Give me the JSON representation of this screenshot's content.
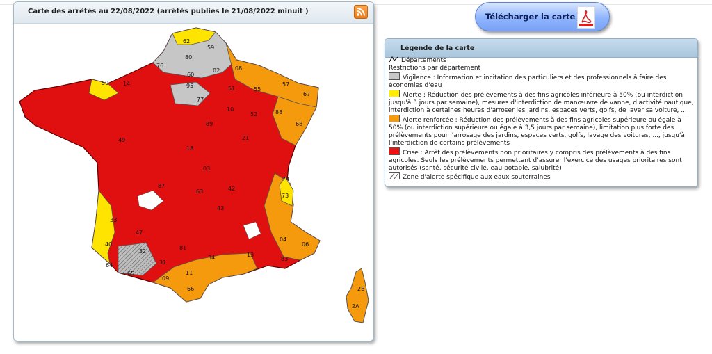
{
  "map": {
    "title": "Carte des arrêtés au 22/08/2022 (arrêtés publiés le 21/08/2022 minuit )",
    "dept_labels": [
      {
        "text": "62"
      },
      {
        "text": "59"
      },
      {
        "text": "80"
      },
      {
        "text": "76"
      },
      {
        "text": "02"
      },
      {
        "text": "08"
      },
      {
        "text": "60"
      },
      {
        "text": "14"
      },
      {
        "text": "50"
      },
      {
        "text": "95"
      },
      {
        "text": "51"
      },
      {
        "text": "57"
      },
      {
        "text": "67"
      },
      {
        "text": "55"
      },
      {
        "text": "77"
      },
      {
        "text": "10"
      },
      {
        "text": "52"
      },
      {
        "text": "88"
      },
      {
        "text": "68"
      },
      {
        "text": "89"
      },
      {
        "text": "21"
      },
      {
        "text": "49"
      },
      {
        "text": "18"
      },
      {
        "text": "03"
      },
      {
        "text": "74"
      },
      {
        "text": "73"
      },
      {
        "text": "42"
      },
      {
        "text": "43"
      },
      {
        "text": "33"
      },
      {
        "text": "47"
      },
      {
        "text": "40"
      },
      {
        "text": "32"
      },
      {
        "text": "31"
      },
      {
        "text": "34"
      },
      {
        "text": "13"
      },
      {
        "text": "83"
      },
      {
        "text": "04"
      },
      {
        "text": "06"
      },
      {
        "text": "64"
      },
      {
        "text": "65"
      },
      {
        "text": "09"
      },
      {
        "text": "66"
      },
      {
        "text": "11"
      },
      {
        "text": "2B"
      },
      {
        "text": "2A"
      },
      {
        "text": "63"
      },
      {
        "text": "81"
      },
      {
        "text": "87"
      }
    ]
  },
  "download": {
    "label": "Télécharger la carte"
  },
  "legend": {
    "title": "Légende de la carte",
    "departements": "Départements",
    "restrictions_heading": "Restrictions par département",
    "items": [
      {
        "color": "#c8c8c8",
        "text": "Vigilance : Information et incitation des particuliers et des professionnels à faire des économies d'eau"
      },
      {
        "color": "#ffee00",
        "text": "Alerte : Réduction des prélèvements à des fins agricoles inférieure à 50% (ou interdiction jusqu'à 3 jours par semaine), mesures d'interdiction de manœuvre de vanne, d'activité nautique, interdiction à certaines heures d'arroser les jardins, espaces verts, golfs, de laver sa voiture, ..."
      },
      {
        "color": "#f59a0c",
        "text": "Alerte renforcée : Réduction des prélèvements à des fins agricoles supérieure ou égale à 50% (ou interdiction supérieure ou égale à 3,5 jours par semaine), limitation plus forte des prélèvements pour l'arrosage des jardins, espaces verts, golfs, lavage des voitures, ..., jusqu'à l'interdiction de certains prélèvements"
      },
      {
        "color": "#ee1111",
        "text": "Crise : Arrêt des prélèvements non prioritaires y compris des prélèvements à des fins agricoles. Seuls les prélèvements permettant d'assurer l'exercice des usages prioritaires sont autorisés (santé, sécurité civile, eau potable, salubrité)"
      }
    ],
    "groundwater": "Zone d'alerte spécifique aux eaux souterraines"
  }
}
